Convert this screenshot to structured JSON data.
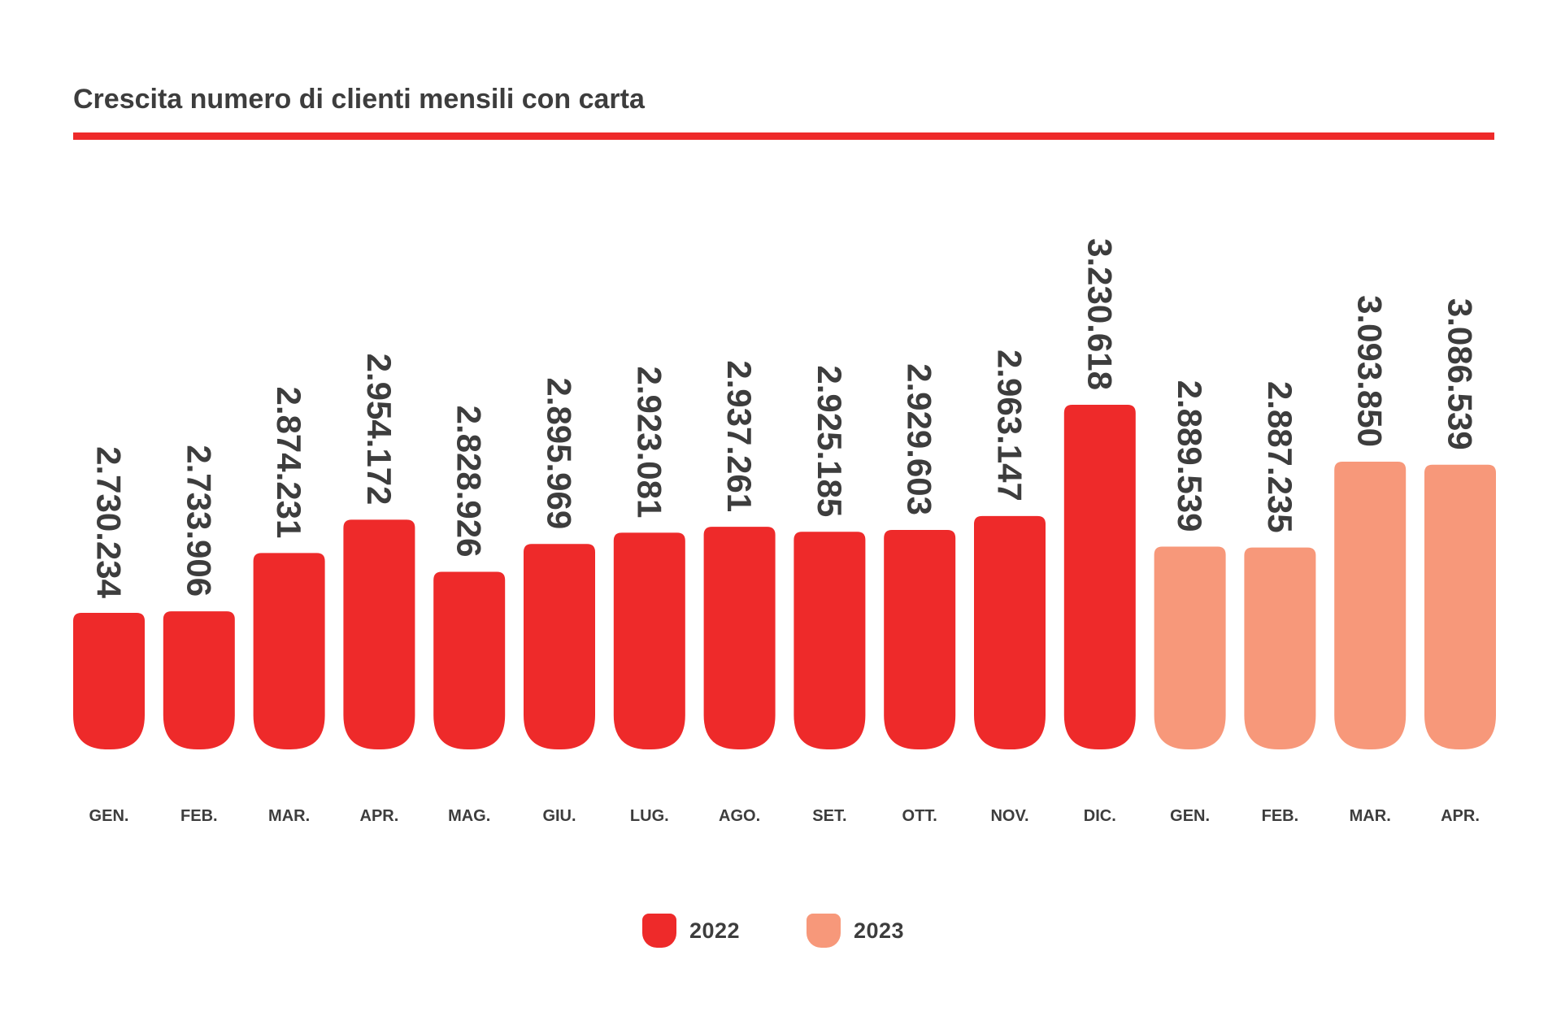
{
  "colors": {
    "series_2022": "#ee2a2a",
    "series_2023": "#f7987a",
    "text": "#3d3d3d",
    "rule": "#ee2a2a"
  },
  "chart_data": {
    "type": "bar",
    "title": "Crescita numero di clienti mensili con carta",
    "xlabel": "",
    "ylabel": "",
    "grid": false,
    "legend_position": "bottom-center",
    "categories": [
      "GEN.",
      "FEB.",
      "MAR.",
      "APR.",
      "MAG.",
      "GIU.",
      "LUG.",
      "AGO.",
      "SET.",
      "OTT.",
      "NOV.",
      "DIC.",
      "GEN.",
      "FEB.",
      "MAR.",
      "APR."
    ],
    "value_labels": [
      "2.730.234",
      "2.733.906",
      "2.874.231",
      "2.954.172",
      "2.828.926",
      "2.895.969",
      "2.923.081",
      "2.937.261",
      "2.925.185",
      "2.929.603",
      "2.963.147",
      "3.230.618",
      "2.889.539",
      "2.887.235",
      "3.093.850",
      "3.086.539"
    ],
    "series": [
      {
        "name": "2022",
        "color": "#ee2a2a",
        "values": [
          2730234,
          2733906,
          2874231,
          2954172,
          2828926,
          2895969,
          2923081,
          2937261,
          2925185,
          2929603,
          2963147,
          3230618,
          null,
          null,
          null,
          null
        ]
      },
      {
        "name": "2023",
        "color": "#f7987a",
        "values": [
          null,
          null,
          null,
          null,
          null,
          null,
          null,
          null,
          null,
          null,
          null,
          null,
          2889539,
          2887235,
          3093850,
          3086539
        ]
      }
    ]
  }
}
